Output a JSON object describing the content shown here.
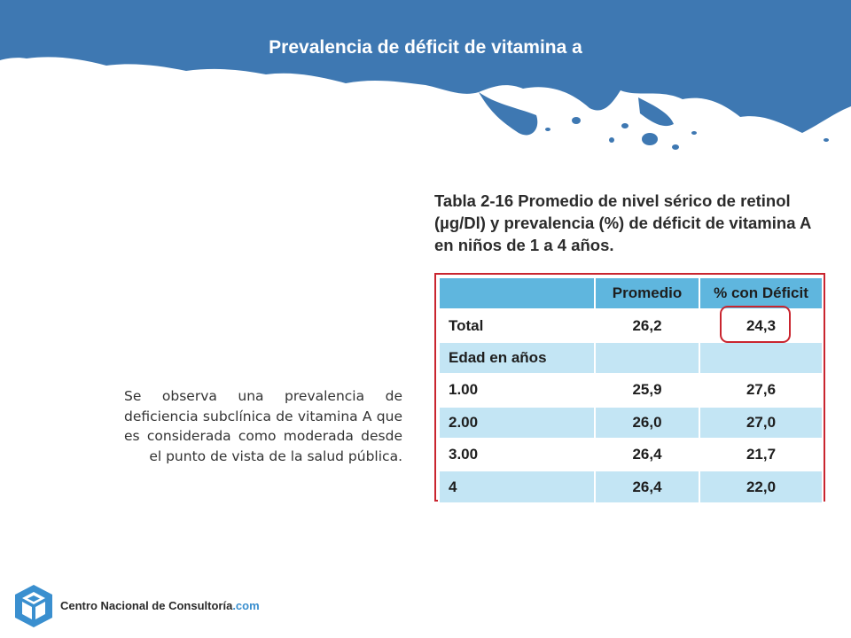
{
  "slide": {
    "title": "Prevalencia de déficit de vitamina a",
    "body_text": "Se observa una prevalencia de deficiencia subclínica de vitamina A que es considerada como moderada desde el punto de vista de la salud pública."
  },
  "table": {
    "caption": "Tabla 2-16 Promedio de nivel sérico de retinol (µg/Dl) y prevalencia (%) de déficit de vitamina A en niños de 1 a 4 años.",
    "headers": [
      "",
      "Promedio",
      "% con Déficit"
    ],
    "rows": [
      {
        "label": "Total",
        "promedio": "26,2",
        "deficit": "24,3"
      },
      {
        "label": "Edad en años",
        "promedio": "",
        "deficit": ""
      },
      {
        "label": "1.00",
        "promedio": "25,9",
        "deficit": "27,6"
      },
      {
        "label": "2.00",
        "promedio": "26,0",
        "deficit": "27,0"
      },
      {
        "label": "3.00",
        "promedio": "26,4",
        "deficit": "21,7"
      },
      {
        "label": "4",
        "promedio": "26,4",
        "deficit": "22,0"
      }
    ]
  },
  "footer": {
    "logo_name": "Centro Nacional de Consultoría",
    "logo_suffix": ".com"
  },
  "colors": {
    "banner_blue": "#3e78b2",
    "table_header": "#5fb6de",
    "table_row_light": "#c3e5f4",
    "highlight_red": "#c9252f",
    "logo_blue": "#3a8fcf"
  }
}
